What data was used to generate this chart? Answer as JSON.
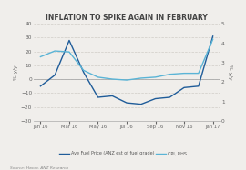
{
  "title": "INFLATION TO SPIKE AGAIN IN FEBRUARY",
  "ylabel_left": "% y/y",
  "ylabel_right": "% y/y",
  "source": "Source: Haver, ANZ Research",
  "x_labels": [
    "Jan 16",
    "Mar 16",
    "May 16",
    "Jul 16",
    "Sep 16",
    "Nov 16",
    "Jan 17"
  ],
  "x_tick_pos": [
    0,
    2,
    4,
    6,
    8,
    10,
    12
  ],
  "fuel_x": [
    0,
    1,
    2,
    3,
    4,
    5,
    6,
    7,
    8,
    9,
    10,
    11,
    12
  ],
  "fuel_y": [
    -5,
    3,
    28,
    5,
    -13,
    -12,
    -17,
    -18,
    -14,
    -13,
    -6,
    -5,
    31
  ],
  "cpi_x": [
    0,
    1,
    2,
    3,
    4,
    5,
    6,
    7,
    8,
    9,
    10,
    11,
    12
  ],
  "cpi_y": [
    3.3,
    3.6,
    3.55,
    2.6,
    2.25,
    2.15,
    2.1,
    2.2,
    2.25,
    2.4,
    2.45,
    2.45,
    4.2
  ],
  "fuel_color": "#1f5c99",
  "cpi_color": "#5ab4d6",
  "ylim_left": [
    -30,
    40
  ],
  "ylim_right": [
    0.0,
    5.0
  ],
  "yticks_left": [
    -30,
    -20,
    -10,
    0,
    10,
    20,
    30,
    40
  ],
  "yticks_right": [
    0.0,
    1.0,
    2.0,
    3.0,
    4.0,
    5.0
  ],
  "legend_fuel": "Ave Fuel Price (ANZ est of fuel grade)",
  "legend_cpi": "CPI, RHS",
  "bg_color": "#f0eeeb",
  "plot_bg": "#f0eeeb",
  "grid_color": "#c8c4be",
  "title_color": "#444444",
  "label_color": "#666666"
}
